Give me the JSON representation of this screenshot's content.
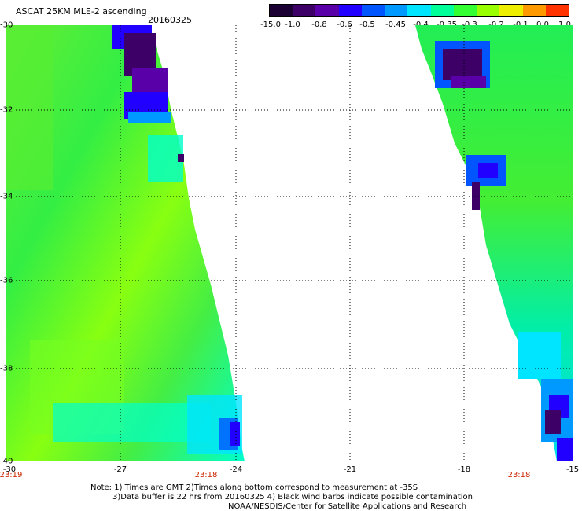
{
  "header": {
    "title": "ASCAT 25KM MLE-2 ascending",
    "date": "20160325"
  },
  "colorbar": {
    "labels": [
      "-15.0",
      "-1.0",
      "-0.8",
      "-0.6",
      "-0.5",
      "-0.45",
      "-0.4",
      "-0.35",
      "-0.3",
      "-0.2",
      "-0.1",
      "0.0",
      "1.0"
    ],
    "colors": [
      "#1a0033",
      "#3d0066",
      "#5a00a8",
      "#2200ff",
      "#0055ff",
      "#0099ff",
      "#00e5ff",
      "#00ff99",
      "#33ff33",
      "#99ff00",
      "#eeee00",
      "#ff9900",
      "#ff3300"
    ]
  },
  "axes": {
    "y_ticks": [
      "-30",
      "-32",
      "-34",
      "-36",
      "-38",
      "-40"
    ],
    "x_ticks": [
      "-30",
      "-27",
      "-24",
      "-21",
      "-18",
      "-15"
    ],
    "time_labels": [
      "23:19",
      "23:18",
      "23:18"
    ]
  },
  "map": {
    "lat_range": [
      -40,
      -30
    ],
    "lon_range": [
      -30,
      -15
    ],
    "grid": "dotted"
  },
  "notes": {
    "line1": "Note: 1) Times are GMT 2)Times along bottom correspond to measurement at -35S",
    "line2": "3)Data buffer is 22 hrs from 20160325 4) Black wind barbs indicate possible contamination",
    "line3": "NOAA/NESDIS/Center for Satellite Applications and Research"
  }
}
